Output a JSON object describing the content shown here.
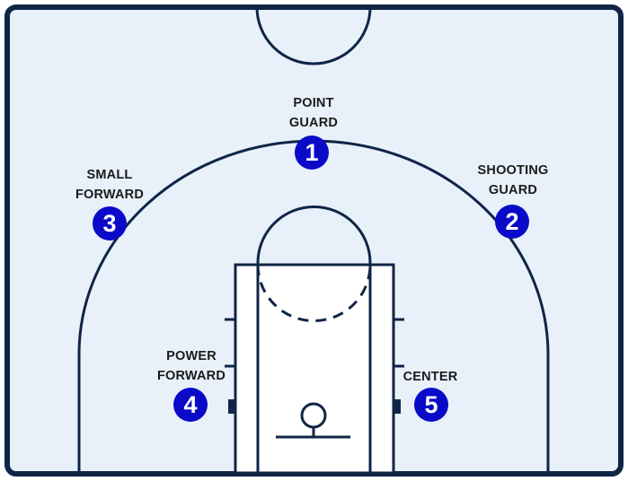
{
  "colors": {
    "court_fill": "#e8f0f9",
    "line": "#0f2546",
    "lane_fill": "#ffffff",
    "badge": "#0a0ac8",
    "label_text": "#1b1b1b"
  },
  "positions": [
    {
      "number": "1",
      "label_lines": [
        "POINT",
        "GUARD"
      ]
    },
    {
      "number": "2",
      "label_lines": [
        "SHOOTING",
        "GUARD"
      ]
    },
    {
      "number": "3",
      "label_lines": [
        "SMALL",
        "FORWARD"
      ]
    },
    {
      "number": "4",
      "label_lines": [
        "POWER",
        "FORWARD"
      ]
    },
    {
      "number": "5",
      "label_lines": [
        "CENTER"
      ]
    }
  ]
}
